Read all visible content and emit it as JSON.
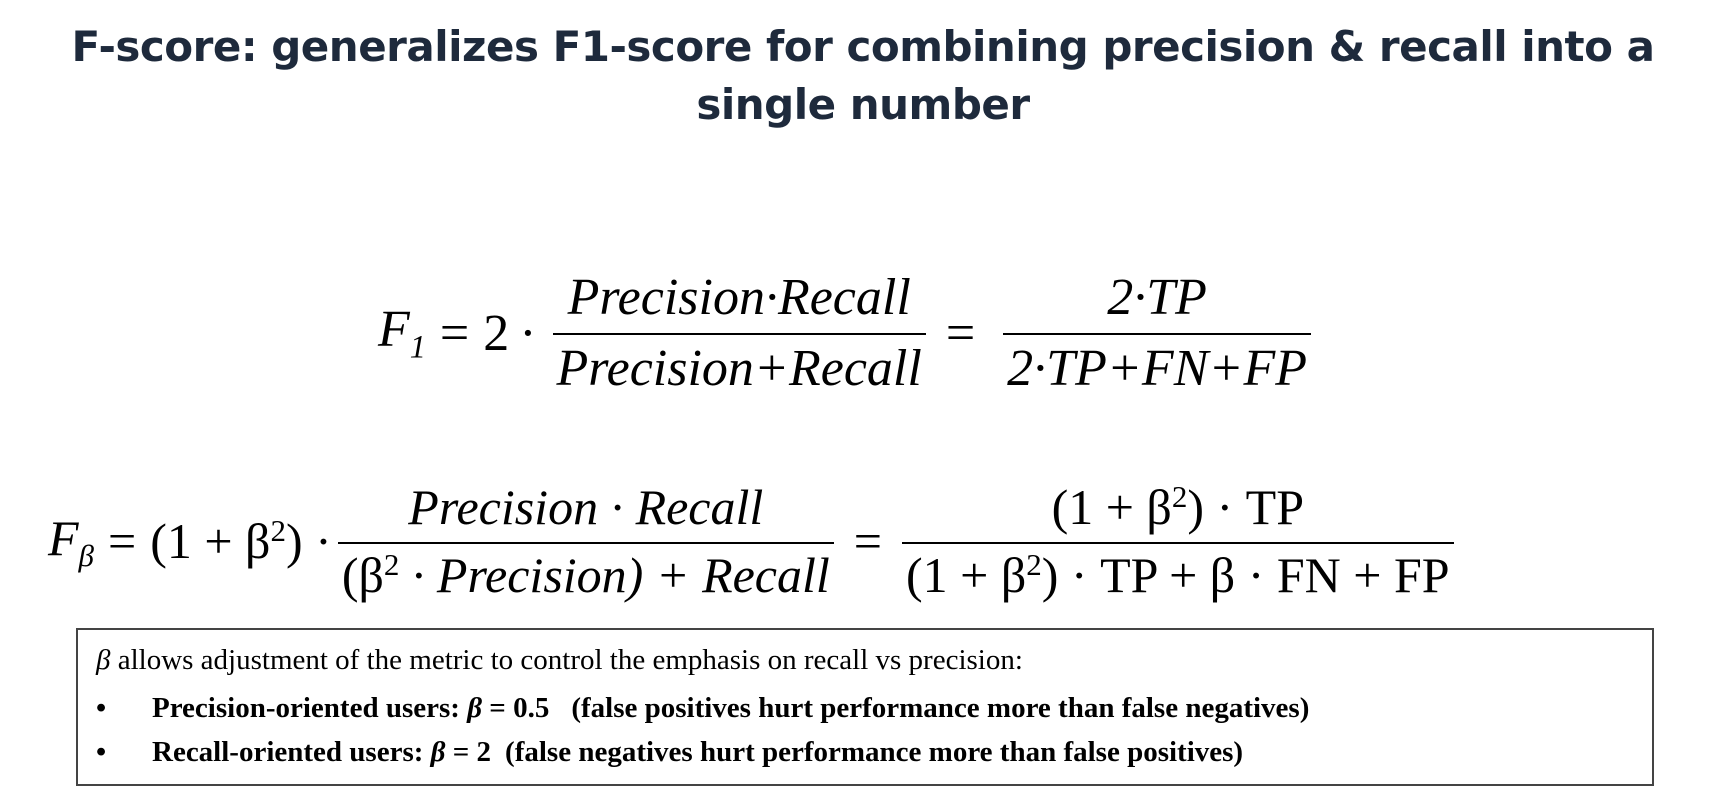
{
  "slide": {
    "title": "F-score: generalizes F1-score for combining precision & recall into a single number",
    "f1_formula": {
      "lhs_F": "F",
      "lhs_sub": "1",
      "eq1": "=",
      "coef": "2",
      "dot": "·",
      "frac1_num": "Precision·Recall",
      "frac1_den": "Precision+Recall",
      "eq2": "=",
      "frac2_num": "2·TP",
      "frac2_den": "2·TP+FN+FP"
    },
    "fbeta_formula": {
      "lhs_F": "F",
      "lhs_sub": "β",
      "eq1": "=",
      "pre_open": "(1 + β",
      "pre_sup": "2",
      "pre_close": ") ·",
      "frac1_num": "Precision · Recall",
      "frac1_den_open": "(β",
      "frac1_den_sup": "2",
      "frac1_den_rest": " · Precision) + Recall",
      "eq2": "=",
      "frac2_num_open": "(1 + β",
      "frac2_num_sup": "2",
      "frac2_num_rest": ") · TP",
      "frac2_den_open": "(1 + β",
      "frac2_den_sup": "2",
      "frac2_den_rest": ") · TP + β · FN + FP"
    },
    "note_box": {
      "line1_symbol": "β",
      "line1_text": " allows adjustment of the metric to control the emphasis on recall vs precision:",
      "bullet_char": "•",
      "bullet1_label": "Precision-oriented users: ",
      "bullet1_beta": "β",
      "bullet1_value": " = 0.5",
      "bullet1_note": "(false positives hurt performance more than false negatives)",
      "bullet2_label": "Recall-oriented users: ",
      "bullet2_beta": "β",
      "bullet2_value": " = 2",
      "bullet2_note": "(false negatives hurt performance more than false positives)"
    }
  }
}
